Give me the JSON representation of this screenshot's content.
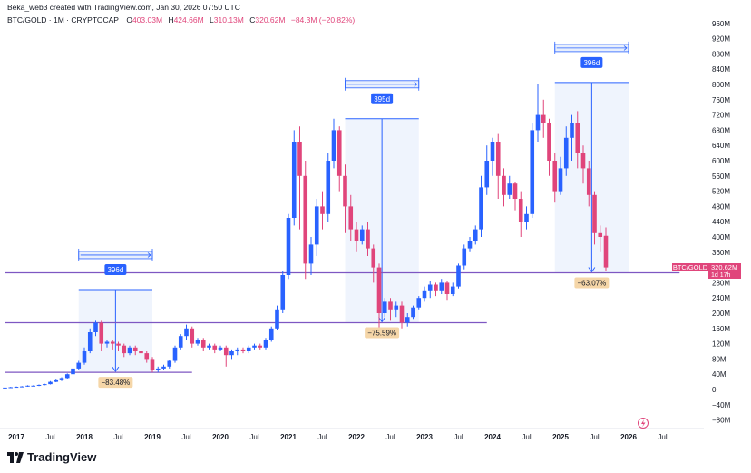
{
  "credit": "Beka_web3 created with TradingView.com, Jan 30, 2026 07:50 UTC",
  "symbol": {
    "title": "BTC/GOLD · 1M · CRYPTOCAP",
    "open_label": "O",
    "open": "403.03M",
    "high_label": "H",
    "high": "424.66M",
    "low_label": "L",
    "low": "310.13M",
    "close_label": "C",
    "close": "320.62M",
    "change": "−84.3M (−20.82%)"
  },
  "price_tag": {
    "symbol": "BTC/GOLD",
    "value": "320.62M",
    "countdown": "1d 17h"
  },
  "brand": "TradingView",
  "colors": {
    "up": "#2962ff",
    "down": "#e0457b",
    "level": "#7e57c2",
    "range_fill": "#e8effc",
    "badge_blue": "#2962ff",
    "badge_orange": "#f5d6a8"
  },
  "chart_data": {
    "type": "candlestick",
    "yaxis": {
      "ticks": [
        "960M",
        "920M",
        "880M",
        "840M",
        "800M",
        "760M",
        "720M",
        "680M",
        "640M",
        "600M",
        "560M",
        "520M",
        "480M",
        "440M",
        "400M",
        "360M",
        "320M",
        "280M",
        "240M",
        "200M",
        "160M",
        "120M",
        "80M",
        "40M",
        "0",
        "−40M",
        "−80M"
      ],
      "values": [
        960,
        920,
        880,
        840,
        800,
        760,
        720,
        680,
        640,
        600,
        560,
        520,
        480,
        440,
        400,
        360,
        320,
        280,
        240,
        200,
        160,
        120,
        80,
        40,
        0,
        -40,
        -80
      ],
      "range": [
        -90,
        990
      ],
      "unit": "M"
    },
    "xaxis": {
      "ticks": [
        {
          "label": "2017",
          "date": "2017-01",
          "major": true
        },
        {
          "label": "Jul",
          "date": "2017-07",
          "major": false
        },
        {
          "label": "2018",
          "date": "2018-01",
          "major": true
        },
        {
          "label": "Jul",
          "date": "2018-07",
          "major": false
        },
        {
          "label": "2019",
          "date": "2019-01",
          "major": true
        },
        {
          "label": "Jul",
          "date": "2019-07",
          "major": false
        },
        {
          "label": "2020",
          "date": "2020-01",
          "major": true
        },
        {
          "label": "Jul",
          "date": "2020-07",
          "major": false
        },
        {
          "label": "2021",
          "date": "2021-01",
          "major": true
        },
        {
          "label": "Jul",
          "date": "2021-07",
          "major": false
        },
        {
          "label": "2022",
          "date": "2022-01",
          "major": true
        },
        {
          "label": "Jul",
          "date": "2022-07",
          "major": false
        },
        {
          "label": "2023",
          "date": "2023-01",
          "major": true
        },
        {
          "label": "Jul",
          "date": "2023-07",
          "major": false
        },
        {
          "label": "2024",
          "date": "2024-01",
          "major": true
        },
        {
          "label": "Jul",
          "date": "2024-07",
          "major": false
        },
        {
          "label": "2025",
          "date": "2025-01",
          "major": true
        },
        {
          "label": "Jul",
          "date": "2025-07",
          "major": false
        },
        {
          "label": "2026",
          "date": "2026-01",
          "major": true
        },
        {
          "label": "Jul",
          "date": "2026-07",
          "major": false
        }
      ]
    },
    "start": "2016-11",
    "candles": [
      [
        5,
        5,
        4,
        6
      ],
      [
        6,
        6,
        5,
        7
      ],
      [
        6,
        7,
        5,
        8
      ],
      [
        7,
        8,
        6,
        9
      ],
      [
        8,
        10,
        7,
        11
      ],
      [
        10,
        10,
        9,
        11
      ],
      [
        10,
        12,
        9,
        13
      ],
      [
        12,
        14,
        11,
        15
      ],
      [
        14,
        20,
        13,
        22
      ],
      [
        20,
        24,
        19,
        26
      ],
      [
        24,
        30,
        22,
        32
      ],
      [
        30,
        40,
        28,
        42
      ],
      [
        40,
        55,
        38,
        60
      ],
      [
        55,
        70,
        50,
        75
      ],
      [
        70,
        100,
        65,
        110
      ],
      [
        100,
        150,
        95,
        160
      ],
      [
        150,
        175,
        140,
        180
      ],
      [
        175,
        120,
        100,
        180
      ],
      [
        120,
        125,
        110,
        130
      ],
      [
        125,
        120,
        105,
        130
      ],
      [
        120,
        115,
        100,
        125
      ],
      [
        115,
        95,
        85,
        120
      ],
      [
        95,
        110,
        90,
        115
      ],
      [
        110,
        100,
        90,
        115
      ],
      [
        100,
        95,
        85,
        105
      ],
      [
        95,
        80,
        70,
        100
      ],
      [
        80,
        50,
        45,
        85
      ],
      [
        50,
        55,
        45,
        60
      ],
      [
        55,
        60,
        50,
        65
      ],
      [
        60,
        75,
        55,
        78
      ],
      [
        75,
        110,
        70,
        115
      ],
      [
        110,
        140,
        105,
        145
      ],
      [
        140,
        160,
        130,
        170
      ],
      [
        160,
        120,
        110,
        165
      ],
      [
        120,
        130,
        115,
        135
      ],
      [
        130,
        110,
        100,
        135
      ],
      [
        110,
        115,
        105,
        120
      ],
      [
        115,
        105,
        95,
        120
      ],
      [
        105,
        110,
        100,
        115
      ],
      [
        110,
        90,
        60,
        115
      ],
      [
        90,
        100,
        80,
        105
      ],
      [
        100,
        105,
        90,
        110
      ],
      [
        105,
        100,
        95,
        110
      ],
      [
        100,
        110,
        95,
        115
      ],
      [
        110,
        115,
        105,
        120
      ],
      [
        115,
        110,
        105,
        120
      ],
      [
        110,
        130,
        105,
        135
      ],
      [
        130,
        160,
        125,
        165
      ],
      [
        160,
        210,
        155,
        220
      ],
      [
        210,
        300,
        200,
        310
      ],
      [
        300,
        450,
        290,
        460
      ],
      [
        450,
        650,
        430,
        680
      ],
      [
        650,
        560,
        420,
        690
      ],
      [
        560,
        330,
        290,
        600
      ],
      [
        330,
        380,
        300,
        400
      ],
      [
        380,
        480,
        350,
        500
      ],
      [
        480,
        460,
        420,
        520
      ],
      [
        460,
        600,
        440,
        620
      ],
      [
        600,
        680,
        580,
        710
      ],
      [
        680,
        560,
        520,
        690
      ],
      [
        560,
        480,
        410,
        590
      ],
      [
        480,
        420,
        390,
        510
      ],
      [
        420,
        390,
        360,
        440
      ],
      [
        390,
        420,
        380,
        430
      ],
      [
        420,
        370,
        350,
        440
      ],
      [
        370,
        320,
        280,
        380
      ],
      [
        320,
        200,
        160,
        330
      ],
      [
        200,
        230,
        190,
        240
      ],
      [
        230,
        210,
        180,
        240
      ],
      [
        210,
        220,
        190,
        230
      ],
      [
        220,
        175,
        160,
        230
      ],
      [
        175,
        190,
        165,
        200
      ],
      [
        190,
        215,
        185,
        220
      ],
      [
        215,
        240,
        210,
        245
      ],
      [
        240,
        260,
        230,
        270
      ],
      [
        260,
        275,
        240,
        285
      ],
      [
        275,
        260,
        245,
        280
      ],
      [
        260,
        280,
        250,
        290
      ],
      [
        280,
        250,
        235,
        285
      ],
      [
        250,
        270,
        245,
        280
      ],
      [
        270,
        325,
        265,
        330
      ],
      [
        325,
        370,
        315,
        380
      ],
      [
        370,
        390,
        360,
        400
      ],
      [
        390,
        420,
        380,
        430
      ],
      [
        420,
        530,
        400,
        560
      ],
      [
        530,
        600,
        510,
        640
      ],
      [
        600,
        650,
        560,
        660
      ],
      [
        650,
        560,
        500,
        670
      ],
      [
        560,
        510,
        480,
        580
      ],
      [
        510,
        540,
        500,
        560
      ],
      [
        540,
        500,
        470,
        545
      ],
      [
        500,
        440,
        400,
        520
      ],
      [
        440,
        460,
        420,
        480
      ],
      [
        460,
        680,
        450,
        700
      ],
      [
        680,
        720,
        650,
        800
      ],
      [
        720,
        700,
        660,
        760
      ],
      [
        700,
        600,
        560,
        710
      ],
      [
        600,
        520,
        490,
        620
      ],
      [
        520,
        580,
        510,
        610
      ],
      [
        580,
        660,
        560,
        690
      ],
      [
        660,
        700,
        600,
        720
      ],
      [
        700,
        620,
        580,
        730
      ],
      [
        620,
        580,
        540,
        640
      ],
      [
        580,
        510,
        480,
        600
      ],
      [
        510,
        410,
        380,
        520
      ],
      [
        410,
        400,
        360,
        430
      ],
      [
        403,
        320,
        310,
        425
      ]
    ],
    "levels": [
      {
        "value": 306,
        "from": "2016-11",
        "to": "2026-10"
      },
      {
        "value": 175,
        "from": "2016-11",
        "to": "2023-12"
      },
      {
        "value": 45,
        "from": "2016-11",
        "to": "2019-08"
      }
    ],
    "ranges": [
      {
        "from": "2017-12",
        "to": "2019-01",
        "top": 262,
        "bottom": 45,
        "duration": "396d",
        "change": "−83.48%"
      },
      {
        "from": "2021-11",
        "to": "2022-12",
        "top": 710,
        "bottom": 175,
        "duration": "395d",
        "change": "−75.59%"
      },
      {
        "from": "2024-12",
        "to": "2026-01",
        "top": 805,
        "bottom": 306,
        "duration": "396d",
        "change": "−63.07%"
      }
    ]
  }
}
